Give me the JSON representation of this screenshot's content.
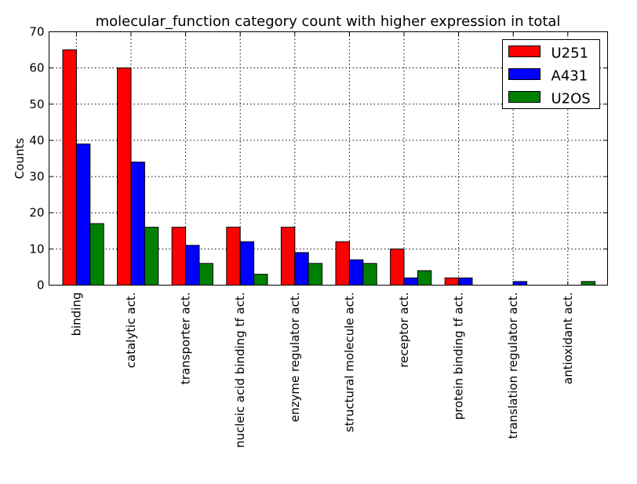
{
  "chart_data": {
    "type": "bar",
    "title": "molecular_function category count with higher expression in total",
    "xlabel": "",
    "ylabel": "Counts",
    "ylim": [
      0,
      70
    ],
    "yticks": [
      0,
      10,
      20,
      30,
      40,
      50,
      60,
      70
    ],
    "grid": true,
    "legend_position": "top-right",
    "categories": [
      "binding",
      "catalytic act.",
      "transporter act.",
      "nucleic acid binding tf act.",
      "enzyme regulator act.",
      "structural molecule act.",
      "receptor act.",
      "protein binding tf act.",
      "translation regulator act.",
      "antioxidant act."
    ],
    "series": [
      {
        "name": "U251",
        "color": "#ff0000",
        "values": [
          65,
          60,
          16,
          16,
          16,
          12,
          10,
          2,
          0,
          0
        ]
      },
      {
        "name": "A431",
        "color": "#0000ff",
        "values": [
          39,
          34,
          11,
          12,
          9,
          7,
          2,
          2,
          1,
          0
        ]
      },
      {
        "name": "U2OS",
        "color": "#008000",
        "values": [
          17,
          16,
          6,
          3,
          6,
          6,
          4,
          0,
          0,
          1
        ]
      }
    ]
  }
}
